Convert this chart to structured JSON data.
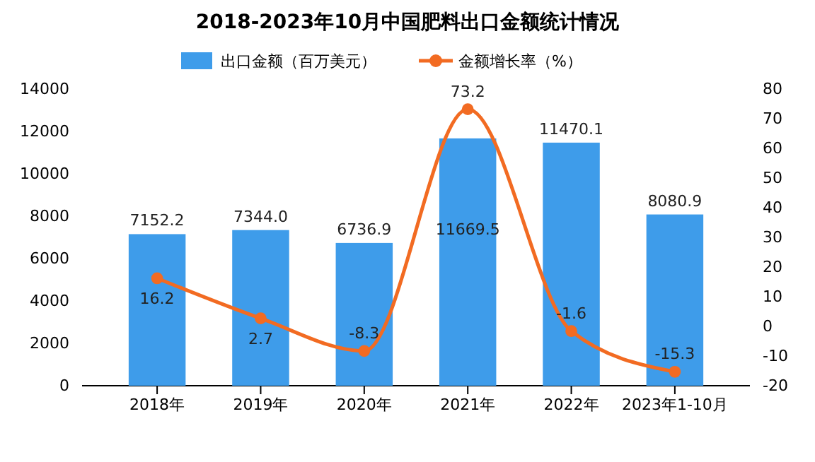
{
  "chart_data": {
    "type": "bar",
    "title": "2018-2023年10月中国肥料出口金额统计情况",
    "categories": [
      "2018年",
      "2019年",
      "2020年",
      "2021年",
      "2022年",
      "2023年1-10月"
    ],
    "series": [
      {
        "name": "出口金额（百万美元）",
        "color": "#3e9cea",
        "values": [
          7152.2,
          7344.0,
          6736.9,
          11669.5,
          11470.1,
          8080.9
        ],
        "value_labels": [
          "7152.2",
          "7344.0",
          "6736.9",
          "11669.5",
          "11470.1",
          "8080.9"
        ]
      },
      {
        "name": "金额增长率（%）",
        "type": "line",
        "axis": "y2",
        "color": "#f26b22",
        "values": [
          16.2,
          2.7,
          -8.3,
          73.2,
          -1.6,
          -15.3
        ],
        "value_labels": [
          "16.2",
          "2.7",
          "-8.3",
          "73.2",
          "-1.6",
          "-15.3"
        ]
      }
    ],
    "ylim": [
      0,
      14000
    ],
    "yticks": [
      0,
      2000,
      4000,
      6000,
      8000,
      10000,
      12000,
      14000
    ],
    "y2lim": [
      -20,
      80
    ],
    "y2ticks": [
      -20,
      -10,
      0,
      10,
      20,
      30,
      40,
      50,
      60,
      70,
      80
    ],
    "legend": "top",
    "marker": "circle",
    "grid": false
  }
}
